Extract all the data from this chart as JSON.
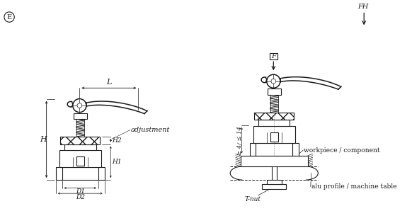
{
  "bg_color": "#ffffff",
  "line_color": "#1a1a1a",
  "labels": {
    "E": "E",
    "L": "L",
    "H": "H",
    "H1": "H1",
    "H2": "H2",
    "D1": "D1",
    "D2": "D2",
    "adjustment": "adjustment",
    "F": "F",
    "FH": "FH",
    "ge4_le14": "≥ 4/ ≤ 14",
    "workpiece": "workpiece / component",
    "alu": "alu profile / machine table",
    "tnut": "T-nut"
  }
}
